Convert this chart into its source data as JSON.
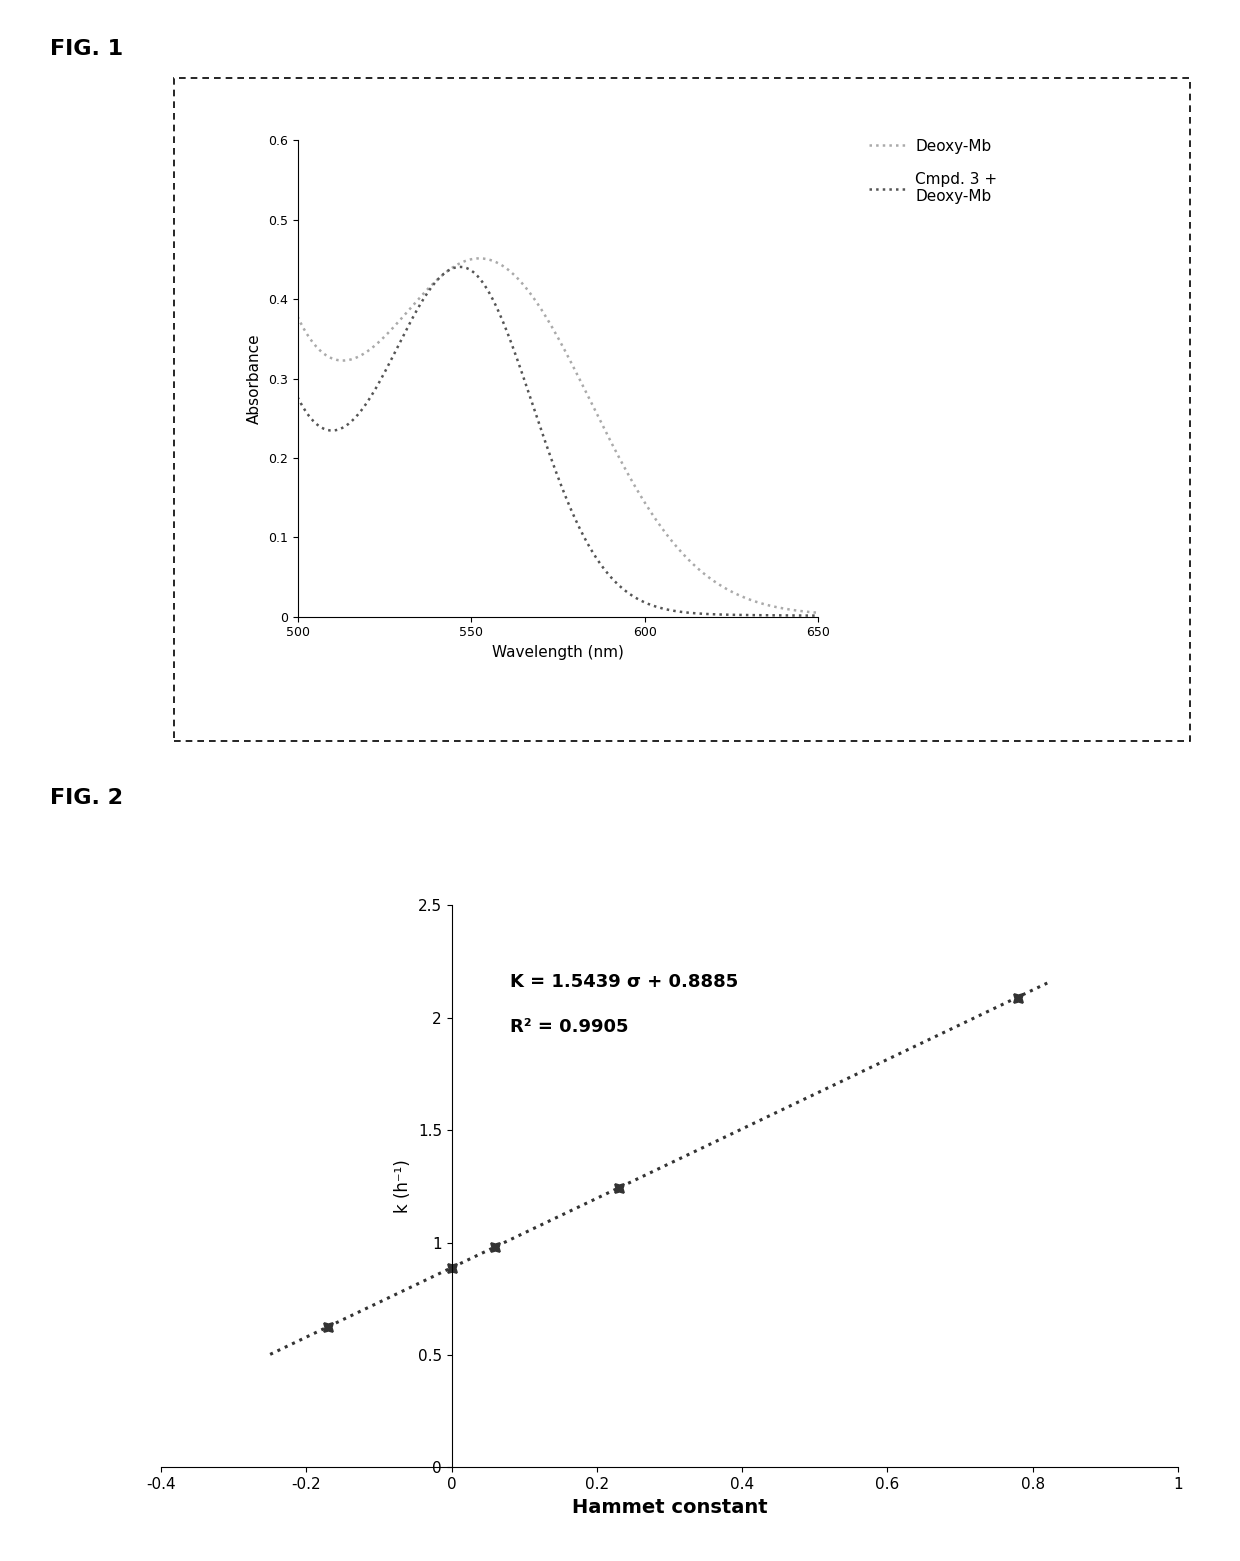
{
  "fig1_title": "FIG. 1",
  "fig2_title": "FIG. 2",
  "fig1_xlabel": "Wavelength (nm)",
  "fig1_ylabel": "Absorbance",
  "fig1_xlim": [
    500,
    650
  ],
  "fig1_ylim": [
    0,
    0.6
  ],
  "fig1_yticks": [
    0,
    0.1,
    0.2,
    0.3,
    0.4,
    0.5,
    0.6
  ],
  "fig1_xticks": [
    500,
    550,
    600,
    650
  ],
  "fig1_legend1": "Deoxy-Mb",
  "fig1_legend2": "Cmpd. 3 +\nDeoxy-Mb",
  "fig2_xlabel": "Hammet constant",
  "fig2_ylabel": "k (h⁻¹)",
  "fig2_xlim": [
    -0.4,
    1.0
  ],
  "fig2_ylim": [
    0,
    2.5
  ],
  "fig2_xticks": [
    -0.4,
    -0.2,
    0.0,
    0.2,
    0.4,
    0.6,
    0.8,
    1.0
  ],
  "fig2_yticks": [
    0,
    0.5,
    1.0,
    1.5,
    2.0,
    2.5
  ],
  "fig2_annotation_line1": "K = 1.5439 σ + 0.8885",
  "fig2_annotation_line2": "R² = 0.9905",
  "fig2_slope": 1.5439,
  "fig2_intercept": 0.8885,
  "fig2_data_x": [
    -0.17,
    0.0,
    0.06,
    0.23,
    0.78
  ],
  "fig2_data_y": [
    0.626,
    0.889,
    0.981,
    1.244,
    2.088
  ],
  "background_color": "#ffffff",
  "deoxy_color": "#aaaaaa",
  "cmpd3_color": "#555555"
}
